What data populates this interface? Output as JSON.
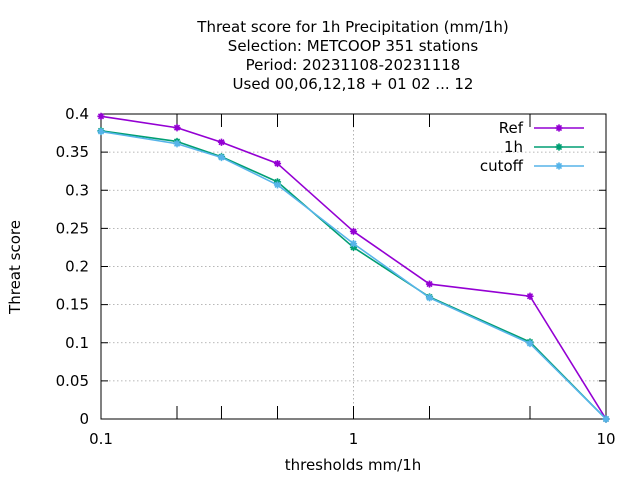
{
  "chart_data": {
    "type": "line",
    "title_lines": [
      "Threat score  for 1h Precipitation (mm/1h)",
      "Selection: METCOOP    351 stations",
      "Period: 20231108-20231118",
      "Used  00,06,12,18 + 01 02 ... 12"
    ],
    "xlabel": "thresholds mm/1h",
    "ylabel": "Threat score",
    "xscale": "log",
    "xlim": [
      0.1,
      10
    ],
    "ylim": [
      0,
      0.4
    ],
    "xticks": [
      0.1,
      1,
      10
    ],
    "xtick_labels": [
      "0.1",
      "1",
      "10"
    ],
    "yticks": [
      0,
      0.05,
      0.1,
      0.15,
      0.2,
      0.25,
      0.3,
      0.35,
      0.4
    ],
    "ytick_labels": [
      "0",
      "0.05",
      "0.1",
      "0.15",
      "0.2",
      "0.25",
      "0.3",
      "0.35",
      "0.4"
    ],
    "grid": true,
    "legend_position": "top-right",
    "x": [
      0.1,
      0.2,
      0.3,
      0.5,
      1,
      2,
      5,
      10
    ],
    "series": [
      {
        "name": "Ref",
        "color": "#9400d3",
        "values": [
          0.397,
          0.382,
          0.363,
          0.335,
          0.246,
          0.177,
          0.161,
          0.0
        ]
      },
      {
        "name": "1h",
        "color": "#009e73",
        "values": [
          0.378,
          0.364,
          0.344,
          0.311,
          0.225,
          0.16,
          0.101,
          0.0
        ]
      },
      {
        "name": "cutoff",
        "color": "#56b4e9",
        "values": [
          0.377,
          0.361,
          0.343,
          0.307,
          0.23,
          0.159,
          0.099,
          0.0
        ]
      }
    ]
  }
}
